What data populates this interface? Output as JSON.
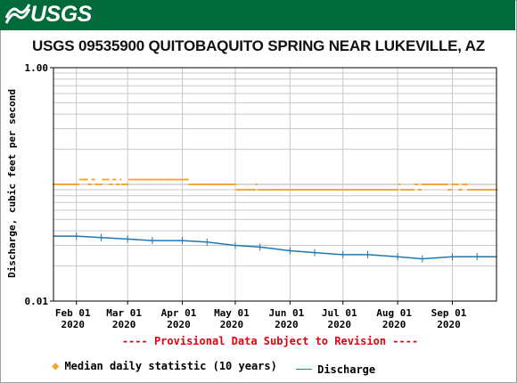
{
  "header": {
    "logo_text": "USGS",
    "logo_color": "#006a3b"
  },
  "page_title": "USGS 09535900 QUITOBAQUITO SPRING NEAR LUKEVILLE, AZ",
  "provisional_note": "---- Provisional Data Subject to Revision ----",
  "legend": {
    "median_label": "Median daily statistic (10 years)",
    "discharge_label": "Discharge",
    "median_color": "#f2a531",
    "discharge_color": "#1f78b4"
  },
  "chart_data": {
    "type": "line",
    "title": "USGS 09535900 QUITOBAQUITO SPRING NEAR LUKEVILLE, AZ",
    "ylabel": "Discharge, cubic feet per second",
    "xlabel": "",
    "y_scale": "log",
    "ylim": [
      0.01,
      1.0
    ],
    "y_ticks": [
      "1.00",
      "0.01"
    ],
    "xlim": [
      "2020-01-19",
      "2020-09-26"
    ],
    "x_ticks": [
      {
        "date": "2020-02-01",
        "label": [
          "Feb 01",
          "2020"
        ]
      },
      {
        "date": "2020-03-01",
        "label": [
          "Mar 01",
          "2020"
        ]
      },
      {
        "date": "2020-04-01",
        "label": [
          "Apr 01",
          "2020"
        ]
      },
      {
        "date": "2020-05-01",
        "label": [
          "May 01",
          "2020"
        ]
      },
      {
        "date": "2020-06-01",
        "label": [
          "Jun 01",
          "2020"
        ]
      },
      {
        "date": "2020-07-01",
        "label": [
          "Jul 01",
          "2020"
        ]
      },
      {
        "date": "2020-08-01",
        "label": [
          "Aug 01",
          "2020"
        ]
      },
      {
        "date": "2020-09-01",
        "label": [
          "Sep 01",
          "2020"
        ]
      }
    ],
    "grid": true,
    "legend_position": "bottom",
    "series": [
      {
        "name": "Median daily statistic (10 years)",
        "style": "points",
        "color": "#f2a531",
        "points": [
          [
            "2020-01-19",
            0.1
          ],
          [
            "2020-01-28",
            0.1
          ],
          [
            "2020-02-01",
            0.1
          ],
          [
            "2020-02-03",
            0.11
          ],
          [
            "2020-02-06",
            0.11
          ],
          [
            "2020-02-08",
            0.1
          ],
          [
            "2020-02-10",
            0.11
          ],
          [
            "2020-02-12",
            0.1
          ],
          [
            "2020-02-16",
            0.11
          ],
          [
            "2020-02-20",
            0.1
          ],
          [
            "2020-02-22",
            0.11
          ],
          [
            "2020-02-24",
            0.1
          ],
          [
            "2020-02-26",
            0.11
          ],
          [
            "2020-02-27",
            0.1
          ],
          [
            "2020-03-01",
            0.1
          ],
          [
            "2020-03-02",
            0.11
          ],
          [
            "2020-03-10",
            0.11
          ],
          [
            "2020-03-20",
            0.11
          ],
          [
            "2020-03-31",
            0.11
          ],
          [
            "2020-04-04",
            0.11
          ],
          [
            "2020-04-05",
            0.1
          ],
          [
            "2020-04-15",
            0.1
          ],
          [
            "2020-04-25",
            0.1
          ],
          [
            "2020-05-01",
            0.1
          ],
          [
            "2020-05-02",
            0.09
          ],
          [
            "2020-05-12",
            0.09
          ],
          [
            "2020-05-13",
            0.1
          ],
          [
            "2020-05-14",
            0.09
          ],
          [
            "2020-06-01",
            0.09
          ],
          [
            "2020-06-15",
            0.09
          ],
          [
            "2020-07-01",
            0.09
          ],
          [
            "2020-07-15",
            0.09
          ],
          [
            "2020-08-01",
            0.09
          ],
          [
            "2020-08-02",
            0.1
          ],
          [
            "2020-08-03",
            0.09
          ],
          [
            "2020-08-10",
            0.09
          ],
          [
            "2020-08-11",
            0.1
          ],
          [
            "2020-08-13",
            0.09
          ],
          [
            "2020-08-15",
            0.1
          ],
          [
            "2020-08-25",
            0.1
          ],
          [
            "2020-08-29",
            0.1
          ],
          [
            "2020-08-30",
            0.09
          ],
          [
            "2020-09-01",
            0.1
          ],
          [
            "2020-09-04",
            0.1
          ],
          [
            "2020-09-05",
            0.09
          ],
          [
            "2020-09-07",
            0.1
          ],
          [
            "2020-09-09",
            0.1
          ],
          [
            "2020-09-10",
            0.09
          ],
          [
            "2020-09-26",
            0.09
          ]
        ]
      },
      {
        "name": "Discharge",
        "style": "line",
        "color": "#1f78b4",
        "points": [
          [
            "2020-01-19",
            0.036
          ],
          [
            "2020-02-01",
            0.036
          ],
          [
            "2020-02-15",
            0.035
          ],
          [
            "2020-03-01",
            0.034
          ],
          [
            "2020-03-15",
            0.033
          ],
          [
            "2020-04-01",
            0.033
          ],
          [
            "2020-04-15",
            0.032
          ],
          [
            "2020-05-01",
            0.03
          ],
          [
            "2020-05-15",
            0.029
          ],
          [
            "2020-06-01",
            0.027
          ],
          [
            "2020-06-15",
            0.026
          ],
          [
            "2020-07-01",
            0.025
          ],
          [
            "2020-07-15",
            0.025
          ],
          [
            "2020-08-01",
            0.024
          ],
          [
            "2020-08-15",
            0.023
          ],
          [
            "2020-09-01",
            0.024
          ],
          [
            "2020-09-15",
            0.024
          ],
          [
            "2020-09-26",
            0.024
          ]
        ]
      }
    ]
  }
}
